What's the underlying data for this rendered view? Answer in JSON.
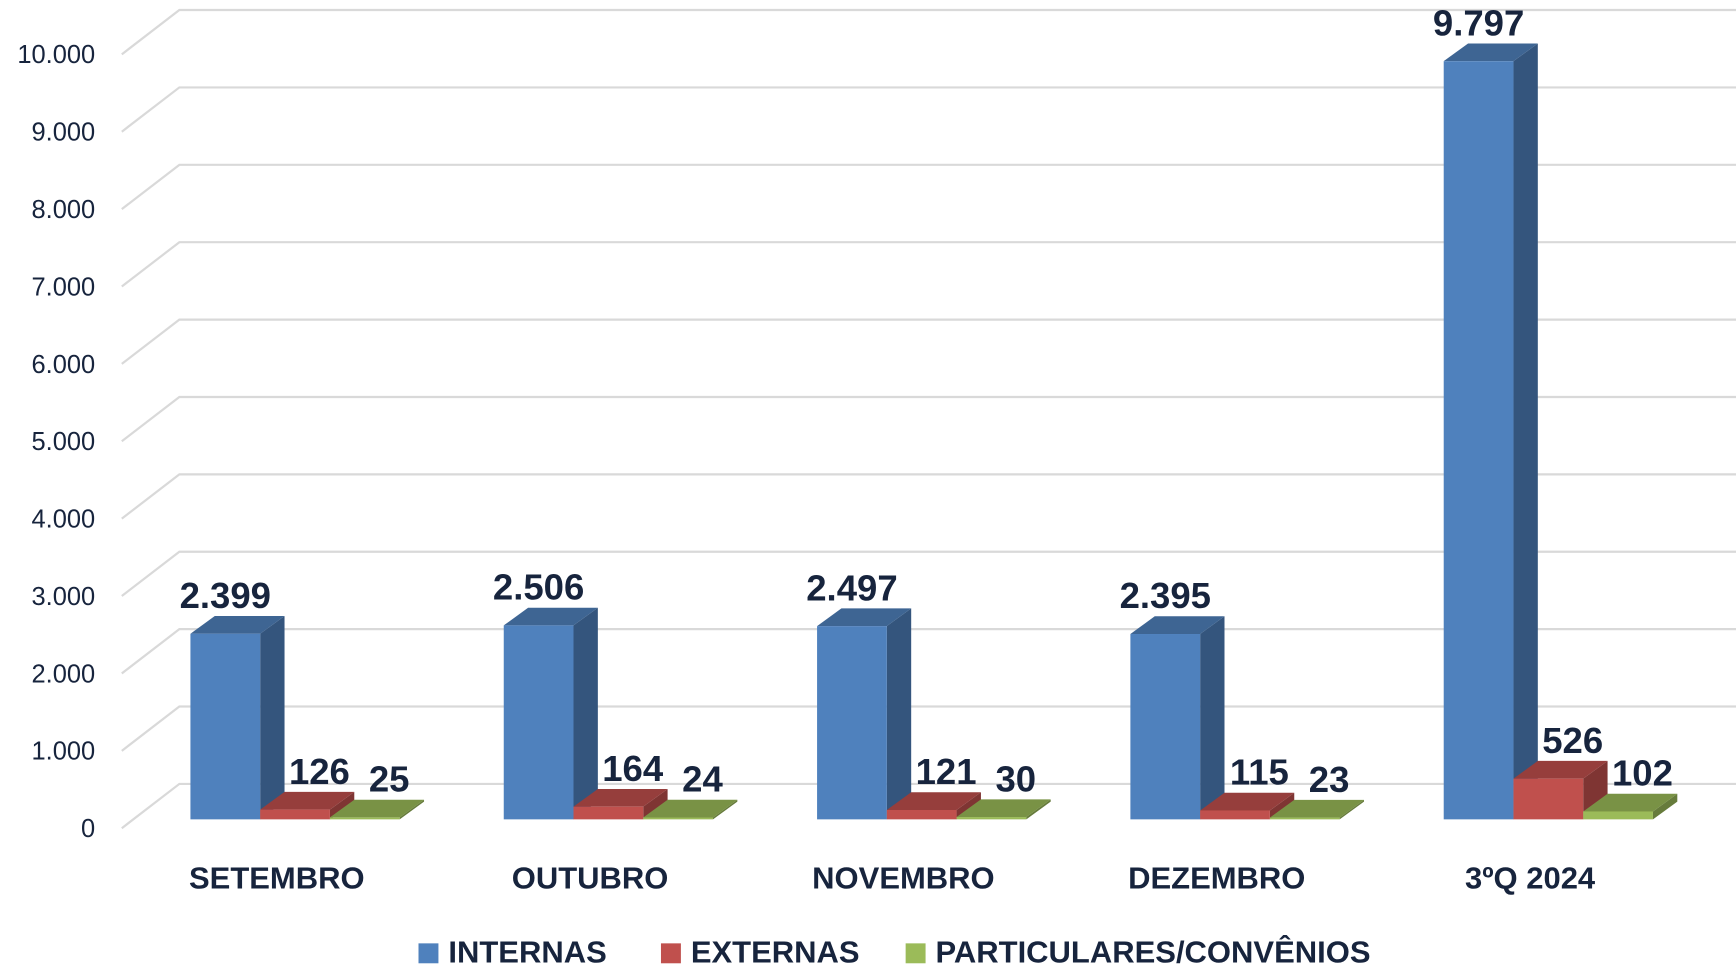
{
  "chart_data": {
    "type": "bar3d",
    "categories": [
      "SETEMBRO",
      "OUTUBRO",
      "NOVEMBRO",
      "DEZEMBRO",
      "3ºQ 2024"
    ],
    "series": [
      {
        "name": "INTERNAS",
        "color": "#4f81bd",
        "values": [
          2399,
          2506,
          2497,
          2395,
          9797
        ],
        "value_labels": [
          "2.399",
          "2.506",
          "2.497",
          "2.395",
          "9.797"
        ]
      },
      {
        "name": "EXTERNAS",
        "color": "#c0504d",
        "values": [
          126,
          164,
          121,
          115,
          526
        ],
        "value_labels": [
          "126",
          "164",
          "121",
          "115",
          "526"
        ]
      },
      {
        "name": "PARTICULARES/CONVÊNIOS",
        "color": "#9bbb59",
        "values": [
          25,
          24,
          30,
          23,
          102
        ],
        "value_labels": [
          "25",
          "24",
          "30",
          "23",
          "102"
        ]
      }
    ],
    "ylim": [
      0,
      10000
    ],
    "yticks": [
      0,
      {
        "value": 1000,
        "label": "1.000"
      },
      {
        "value": 2000,
        "label": "2.000"
      },
      {
        "value": 3000,
        "label": "3.000"
      },
      {
        "value": 4000,
        "label": "4.000"
      },
      {
        "value": 5000,
        "label": "5.000"
      },
      {
        "value": 6000,
        "label": "6.000"
      },
      {
        "value": 7000,
        "label": "7.000"
      },
      {
        "value": 8000,
        "label": "8.000"
      },
      {
        "value": 9000,
        "label": "9.000"
      },
      {
        "value": 10000,
        "label": "10.000"
      }
    ],
    "grid": true,
    "legend": "bottom"
  }
}
